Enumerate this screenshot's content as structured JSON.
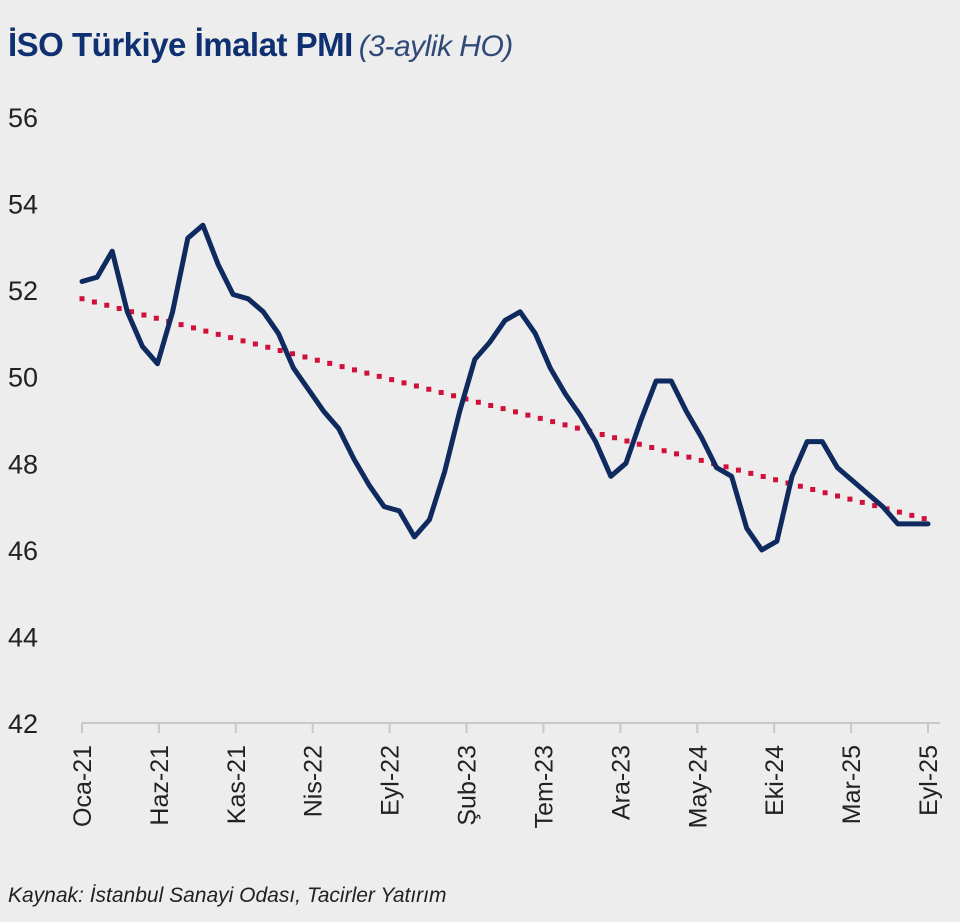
{
  "chart_data": {
    "type": "line",
    "title": "İSO Türkiye İmalat PMI",
    "subtitle": "(3-aylik HO)",
    "xlabel": "",
    "ylabel": "",
    "ylim": [
      42,
      56
    ],
    "yticks": [
      42,
      44,
      46,
      48,
      50,
      52,
      54,
      56
    ],
    "xtick_labels": [
      "Oca-21",
      "Haz-21",
      "Kas-21",
      "Nis-22",
      "Eyl-22",
      "Şub-23",
      "Tem-23",
      "Ara-23",
      "May-24",
      "Eki-24",
      "Mar-25",
      "Eyl-25"
    ],
    "x_start": "Oca-21",
    "x_end": "Eyl-25",
    "grid": false,
    "series": [
      {
        "name": "PMI (3-aylik HO)",
        "color": "#0f2a5e",
        "style": "solid",
        "values": [
          52.2,
          52.3,
          52.9,
          51.5,
          50.7,
          50.3,
          51.5,
          53.2,
          53.5,
          52.6,
          51.9,
          51.8,
          51.5,
          51.0,
          50.2,
          49.7,
          49.2,
          48.8,
          48.1,
          47.5,
          47.0,
          46.9,
          46.3,
          46.7,
          47.8,
          49.2,
          50.4,
          50.8,
          51.3,
          51.5,
          51.0,
          50.2,
          49.6,
          49.1,
          48.5,
          47.7,
          48.0,
          49.0,
          49.9,
          49.9,
          49.2,
          48.6,
          47.9,
          47.7,
          46.5,
          46.0,
          46.2,
          47.7,
          48.5,
          48.5,
          47.9,
          47.6,
          47.3,
          47.0,
          46.6,
          46.6,
          46.6
        ]
      },
      {
        "name": "Trend",
        "color": "#d0103a",
        "style": "dotted",
        "values_endpoints": [
          51.8,
          46.7
        ]
      }
    ],
    "source": "Kaynak: İstanbul Sanayi Odası, Tacirler Yatırım"
  }
}
